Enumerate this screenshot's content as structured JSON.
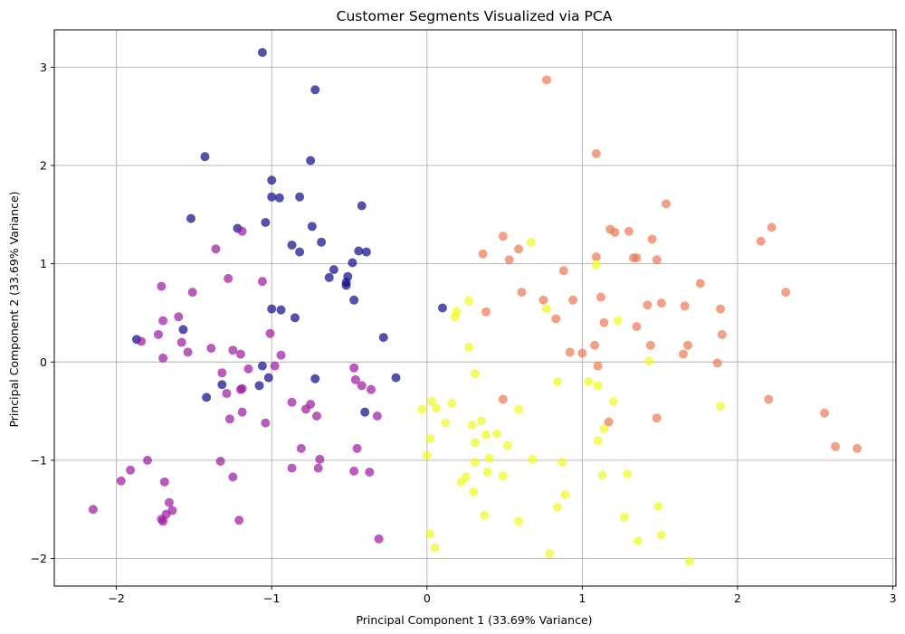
{
  "chart_data": {
    "type": "scatter",
    "title": "Customer Segments Visualized via PCA",
    "xlabel": "Principal Component 1 (33.69% Variance)",
    "ylabel": "Principal Component 2 (33.69% Variance)",
    "xlim": [
      -2.4,
      3.02
    ],
    "ylim": [
      -2.28,
      3.38
    ],
    "xticks": [
      -2,
      -1,
      0,
      1,
      2,
      3
    ],
    "yticks": [
      -2,
      -1,
      0,
      1,
      2,
      3
    ],
    "xtick_labels": [
      "−2",
      "−1",
      "0",
      "1",
      "2",
      "3"
    ],
    "ytick_labels": [
      "−2",
      "−1",
      "0",
      "1",
      "2",
      "3"
    ],
    "grid": true,
    "legend": "none",
    "marker_alpha": 0.7,
    "series": [
      {
        "color": "#0d0887",
        "points": [
          [
            -1.06,
            3.15
          ],
          [
            -0.72,
            2.77
          ],
          [
            -1.43,
            2.09
          ],
          [
            -0.75,
            2.05
          ],
          [
            -1.0,
            1.85
          ],
          [
            -1.0,
            1.68
          ],
          [
            -0.95,
            1.67
          ],
          [
            -0.82,
            1.68
          ],
          [
            -1.52,
            1.46
          ],
          [
            -1.04,
            1.42
          ],
          [
            -0.42,
            1.59
          ],
          [
            -1.22,
            1.36
          ],
          [
            -0.74,
            1.38
          ],
          [
            -0.87,
            1.19
          ],
          [
            -0.68,
            1.22
          ],
          [
            -0.82,
            1.12
          ],
          [
            -0.44,
            1.13
          ],
          [
            -0.39,
            1.12
          ],
          [
            -0.48,
            1.01
          ],
          [
            -0.6,
            0.94
          ],
          [
            -0.63,
            0.86
          ],
          [
            -0.51,
            0.87
          ],
          [
            -0.52,
            0.81
          ],
          [
            -0.52,
            0.78
          ],
          [
            -0.47,
            0.63
          ],
          [
            -1.0,
            0.54
          ],
          [
            -0.94,
            0.53
          ],
          [
            -0.85,
            0.45
          ],
          [
            -1.57,
            0.33
          ],
          [
            -1.87,
            0.23
          ],
          [
            -0.28,
            0.25
          ],
          [
            -1.06,
            -0.04
          ],
          [
            -1.02,
            -0.16
          ],
          [
            -0.72,
            -0.17
          ],
          [
            -0.2,
            -0.16
          ],
          [
            -1.32,
            -0.23
          ],
          [
            -1.08,
            -0.24
          ],
          [
            -1.42,
            -0.36
          ],
          [
            -0.4,
            -0.51
          ],
          [
            0.1,
            0.55
          ]
        ]
      },
      {
        "color": "#9c179e",
        "points": [
          [
            -1.19,
            1.33
          ],
          [
            -1.36,
            1.15
          ],
          [
            -1.28,
            0.85
          ],
          [
            -1.06,
            0.82
          ],
          [
            -1.71,
            0.77
          ],
          [
            -1.51,
            0.71
          ],
          [
            -1.6,
            0.46
          ],
          [
            -1.7,
            0.42
          ],
          [
            -1.73,
            0.28
          ],
          [
            -1.01,
            0.29
          ],
          [
            -1.84,
            0.21
          ],
          [
            -1.58,
            0.2
          ],
          [
            -1.39,
            0.14
          ],
          [
            -1.25,
            0.12
          ],
          [
            -1.54,
            0.1
          ],
          [
            -1.2,
            0.08
          ],
          [
            -0.94,
            0.07
          ],
          [
            -1.7,
            0.04
          ],
          [
            -0.98,
            -0.04
          ],
          [
            -1.15,
            -0.07
          ],
          [
            -1.32,
            -0.11
          ],
          [
            -0.47,
            -0.06
          ],
          [
            -0.46,
            -0.18
          ],
          [
            -0.42,
            -0.24
          ],
          [
            -1.19,
            -0.27
          ],
          [
            -1.2,
            -0.28
          ],
          [
            -1.29,
            -0.32
          ],
          [
            -0.36,
            -0.28
          ],
          [
            -0.87,
            -0.41
          ],
          [
            -0.75,
            -0.43
          ],
          [
            -0.78,
            -0.48
          ],
          [
            -1.19,
            -0.51
          ],
          [
            -0.71,
            -0.55
          ],
          [
            -0.32,
            -0.55
          ],
          [
            -1.27,
            -0.58
          ],
          [
            -1.04,
            -0.62
          ],
          [
            -0.81,
            -0.88
          ],
          [
            -0.45,
            -0.88
          ],
          [
            -0.69,
            -0.99
          ],
          [
            -1.8,
            -1.0
          ],
          [
            -1.33,
            -1.01
          ],
          [
            -0.87,
            -1.08
          ],
          [
            -0.7,
            -1.08
          ],
          [
            -1.91,
            -1.1
          ],
          [
            -0.47,
            -1.11
          ],
          [
            -0.37,
            -1.12
          ],
          [
            -1.25,
            -1.17
          ],
          [
            -1.97,
            -1.21
          ],
          [
            -1.69,
            -1.22
          ],
          [
            -1.66,
            -1.43
          ],
          [
            -2.15,
            -1.5
          ],
          [
            -1.64,
            -1.51
          ],
          [
            -1.68,
            -1.55
          ],
          [
            -1.71,
            -1.6
          ],
          [
            -1.7,
            -1.62
          ],
          [
            -1.21,
            -1.61
          ],
          [
            -0.31,
            -1.8
          ]
        ]
      },
      {
        "color": "#ed7953",
        "points": [
          [
            0.77,
            2.87
          ],
          [
            1.09,
            2.12
          ],
          [
            1.54,
            1.61
          ],
          [
            1.18,
            1.35
          ],
          [
            1.21,
            1.32
          ],
          [
            1.3,
            1.33
          ],
          [
            2.22,
            1.37
          ],
          [
            0.49,
            1.28
          ],
          [
            1.45,
            1.25
          ],
          [
            2.15,
            1.23
          ],
          [
            0.59,
            1.15
          ],
          [
            0.36,
            1.1
          ],
          [
            0.53,
            1.04
          ],
          [
            1.09,
            1.07
          ],
          [
            1.33,
            1.06
          ],
          [
            1.35,
            1.06
          ],
          [
            1.48,
            1.04
          ],
          [
            0.88,
            0.93
          ],
          [
            1.76,
            0.8
          ],
          [
            2.31,
            0.71
          ],
          [
            0.61,
            0.71
          ],
          [
            1.12,
            0.66
          ],
          [
            0.75,
            0.63
          ],
          [
            0.94,
            0.63
          ],
          [
            1.42,
            0.58
          ],
          [
            1.51,
            0.6
          ],
          [
            1.66,
            0.57
          ],
          [
            1.89,
            0.54
          ],
          [
            0.38,
            0.51
          ],
          [
            0.83,
            0.44
          ],
          [
            1.14,
            0.4
          ],
          [
            1.35,
            0.36
          ],
          [
            1.9,
            0.28
          ],
          [
            1.08,
            0.17
          ],
          [
            1.44,
            0.17
          ],
          [
            1.68,
            0.17
          ],
          [
            0.92,
            0.1
          ],
          [
            1.0,
            0.09
          ],
          [
            1.65,
            0.08
          ],
          [
            1.87,
            -0.01
          ],
          [
            1.1,
            -0.04
          ],
          [
            0.49,
            -0.38
          ],
          [
            2.2,
            -0.38
          ],
          [
            1.48,
            -0.57
          ],
          [
            2.56,
            -0.52
          ],
          [
            1.17,
            -0.61
          ],
          [
            2.63,
            -0.86
          ],
          [
            2.77,
            -0.88
          ]
        ]
      },
      {
        "color": "#f0f921",
        "points": [
          [
            0.67,
            1.22
          ],
          [
            1.09,
            0.99
          ],
          [
            0.27,
            0.62
          ],
          [
            0.77,
            0.54
          ],
          [
            0.19,
            0.51
          ],
          [
            0.18,
            0.46
          ],
          [
            1.23,
            0.42
          ],
          [
            0.27,
            0.15
          ],
          [
            1.43,
            0.01
          ],
          [
            0.31,
            -0.12
          ],
          [
            0.84,
            -0.2
          ],
          [
            1.04,
            -0.2
          ],
          [
            1.1,
            -0.24
          ],
          [
            1.2,
            -0.4
          ],
          [
            0.03,
            -0.4
          ],
          [
            0.16,
            -0.42
          ],
          [
            0.06,
            -0.47
          ],
          [
            -0.03,
            -0.48
          ],
          [
            0.59,
            -0.48
          ],
          [
            1.89,
            -0.45
          ],
          [
            0.35,
            -0.6
          ],
          [
            0.12,
            -0.62
          ],
          [
            0.29,
            -0.64
          ],
          [
            1.14,
            -0.68
          ],
          [
            0.45,
            -0.73
          ],
          [
            0.38,
            -0.74
          ],
          [
            0.02,
            -0.78
          ],
          [
            1.1,
            -0.8
          ],
          [
            0.31,
            -0.82
          ],
          [
            0.52,
            -0.85
          ],
          [
            0.0,
            -0.95
          ],
          [
            0.4,
            -0.98
          ],
          [
            0.68,
            -0.99
          ],
          [
            0.87,
            -1.02
          ],
          [
            0.31,
            -1.02
          ],
          [
            0.39,
            -1.12
          ],
          [
            1.13,
            -1.15
          ],
          [
            1.29,
            -1.14
          ],
          [
            0.49,
            -1.16
          ],
          [
            0.25,
            -1.17
          ],
          [
            0.22,
            -1.22
          ],
          [
            0.3,
            -1.32
          ],
          [
            0.89,
            -1.35
          ],
          [
            1.49,
            -1.47
          ],
          [
            0.84,
            -1.48
          ],
          [
            0.37,
            -1.56
          ],
          [
            1.27,
            -1.58
          ],
          [
            0.59,
            -1.62
          ],
          [
            0.02,
            -1.75
          ],
          [
            1.51,
            -1.76
          ],
          [
            1.36,
            -1.82
          ],
          [
            0.05,
            -1.89
          ],
          [
            0.79,
            -1.95
          ],
          [
            1.69,
            -2.03
          ]
        ]
      }
    ]
  }
}
